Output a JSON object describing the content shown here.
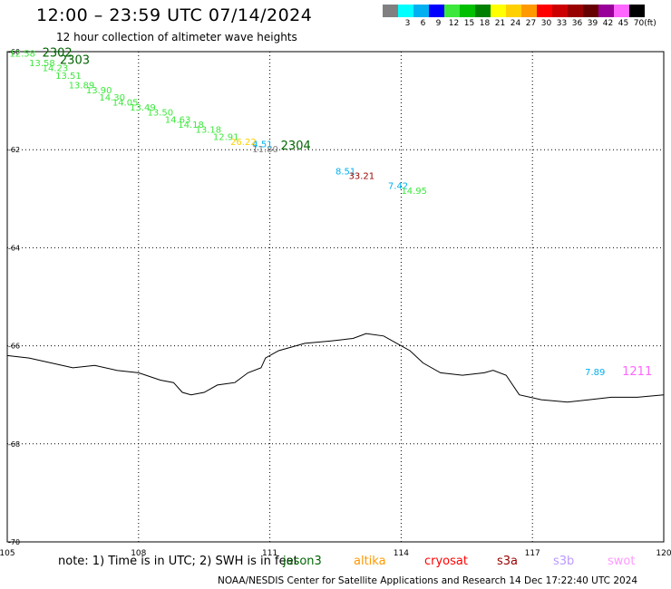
{
  "header": {
    "title": "12:00 – 23:59 UTC 07/14/2024",
    "subtitle": "12 hour collection of altimeter wave heights"
  },
  "legend": {
    "unit": "(ft)",
    "items": [
      {
        "label": "",
        "color": "#808080"
      },
      {
        "label": "3",
        "color": "#00ffff"
      },
      {
        "label": "6",
        "color": "#00b0f0"
      },
      {
        "label": "9",
        "color": "#0000ff"
      },
      {
        "label": "12",
        "color": "#3ce83c"
      },
      {
        "label": "15",
        "color": "#00c000"
      },
      {
        "label": "18",
        "color": "#008000"
      },
      {
        "label": "21",
        "color": "#ffff00"
      },
      {
        "label": "24",
        "color": "#ffd000"
      },
      {
        "label": "27",
        "color": "#ff9900"
      },
      {
        "label": "30",
        "color": "#ff0000"
      },
      {
        "label": "33",
        "color": "#cc0000"
      },
      {
        "label": "36",
        "color": "#990000"
      },
      {
        "label": "39",
        "color": "#660000"
      },
      {
        "label": "42",
        "color": "#990099"
      },
      {
        "label": "45",
        "color": "#ff66ff"
      },
      {
        "label": "70",
        "color": "#000000"
      }
    ]
  },
  "map": {
    "lon_range": [
      105,
      120
    ],
    "lat_range": [
      -70,
      -60
    ],
    "lon_ticks": [
      "105",
      "108",
      "111",
      "114",
      "117",
      "120"
    ],
    "lat_ticks": [
      "-60",
      "-62",
      "-64",
      "-66",
      "-68",
      "-70"
    ],
    "coastline": [
      [
        105,
        -66.2
      ],
      [
        105.5,
        -66.25
      ],
      [
        106,
        -66.35
      ],
      [
        106.5,
        -66.45
      ],
      [
        107,
        -66.4
      ],
      [
        107.5,
        -66.5
      ],
      [
        108,
        -66.55
      ],
      [
        108.5,
        -66.7
      ],
      [
        108.8,
        -66.75
      ],
      [
        109,
        -66.95
      ],
      [
        109.2,
        -67.0
      ],
      [
        109.5,
        -66.95
      ],
      [
        109.8,
        -66.8
      ],
      [
        110.2,
        -66.75
      ],
      [
        110.5,
        -66.55
      ],
      [
        110.8,
        -66.45
      ],
      [
        110.9,
        -66.25
      ],
      [
        111.2,
        -66.1
      ],
      [
        111.8,
        -65.95
      ],
      [
        112.4,
        -65.9
      ],
      [
        112.9,
        -65.85
      ],
      [
        113.2,
        -65.75
      ],
      [
        113.6,
        -65.8
      ],
      [
        113.9,
        -65.95
      ],
      [
        114.2,
        -66.1
      ],
      [
        114.5,
        -66.35
      ],
      [
        114.9,
        -66.55
      ],
      [
        115.4,
        -66.6
      ],
      [
        115.9,
        -66.55
      ],
      [
        116.1,
        -66.5
      ],
      [
        116.4,
        -66.6
      ],
      [
        116.7,
        -67.0
      ],
      [
        117.2,
        -67.1
      ],
      [
        117.8,
        -67.15
      ],
      [
        118.3,
        -67.1
      ],
      [
        118.8,
        -67.05
      ],
      [
        119.4,
        -67.05
      ],
      [
        120,
        -67.0
      ]
    ],
    "measurements": [
      {
        "text": "12.58",
        "lon": 105.05,
        "lat": -60.1,
        "color": "#3ce83c"
      },
      {
        "text": "13.58",
        "lon": 105.5,
        "lat": -60.3,
        "color": "#3ce83c"
      },
      {
        "text": "14.23",
        "lon": 105.8,
        "lat": -60.4,
        "color": "#3ce83c"
      },
      {
        "text": "13.51",
        "lon": 106.1,
        "lat": -60.55,
        "color": "#3ce83c"
      },
      {
        "text": "13.89",
        "lon": 106.4,
        "lat": -60.75,
        "color": "#3ce83c"
      },
      {
        "text": "13.90",
        "lon": 106.8,
        "lat": -60.85,
        "color": "#3ce83c"
      },
      {
        "text": "14.30",
        "lon": 107.1,
        "lat": -61.0,
        "color": "#3ce83c"
      },
      {
        "text": "14.05",
        "lon": 107.4,
        "lat": -61.1,
        "color": "#3ce83c"
      },
      {
        "text": "13.49",
        "lon": 107.8,
        "lat": -61.2,
        "color": "#3ce83c"
      },
      {
        "text": "13.50",
        "lon": 108.2,
        "lat": -61.3,
        "color": "#3ce83c"
      },
      {
        "text": "14.63",
        "lon": 108.6,
        "lat": -61.45,
        "color": "#3ce83c"
      },
      {
        "text": "14.18",
        "lon": 108.9,
        "lat": -61.55,
        "color": "#3ce83c"
      },
      {
        "text": "13.18",
        "lon": 109.3,
        "lat": -61.65,
        "color": "#3ce83c"
      },
      {
        "text": "12.91",
        "lon": 109.7,
        "lat": -61.8,
        "color": "#3ce83c"
      },
      {
        "text": "26.22",
        "lon": 110.1,
        "lat": -61.9,
        "color": "#ffd000"
      },
      {
        "text": "11.80",
        "lon": 110.6,
        "lat": -62.05,
        "color": "#808080"
      },
      {
        "text": "4.51",
        "lon": 110.6,
        "lat": -61.95,
        "color": "#00b0f0"
      },
      {
        "text": "8.51",
        "lon": 112.5,
        "lat": -62.5,
        "color": "#00b0f0"
      },
      {
        "text": "33.21",
        "lon": 112.8,
        "lat": -62.6,
        "color": "#990000"
      },
      {
        "text": "7.42",
        "lon": 113.7,
        "lat": -62.8,
        "color": "#00b0f0"
      },
      {
        "text": "14.95",
        "lon": 114.0,
        "lat": -62.9,
        "color": "#3ce83c"
      },
      {
        "text": "7.89",
        "lon": 118.2,
        "lat": -66.6,
        "color": "#00b0f0"
      }
    ],
    "passes": [
      {
        "text": "2302",
        "lon": 105.8,
        "lat": -60.1,
        "color": "#006400"
      },
      {
        "text": "2303",
        "lon": 106.2,
        "lat": -60.25,
        "color": "#006400"
      },
      {
        "text": "2304",
        "lon": 111.25,
        "lat": -62.0,
        "color": "#006400"
      },
      {
        "text": "1211",
        "lon": 119.05,
        "lat": -66.6,
        "color": "#ff66ff"
      }
    ]
  },
  "footer": {
    "note": "note: 1) Time is in UTC; 2) SWH is in feet",
    "satellites": [
      {
        "name": "jason3",
        "color": "#006400"
      },
      {
        "name": "altika",
        "color": "#ff9900"
      },
      {
        "name": "cryosat",
        "color": "#ff0000"
      },
      {
        "name": "s3a",
        "color": "#990000"
      },
      {
        "name": "s3b",
        "color": "#bb99ff"
      },
      {
        "name": "swot",
        "color": "#ff99ff"
      }
    ],
    "credit": "NOAA/NESDIS Center for Satellite Applications and Research   14 Dec 17:22:40 UTC 2024"
  }
}
